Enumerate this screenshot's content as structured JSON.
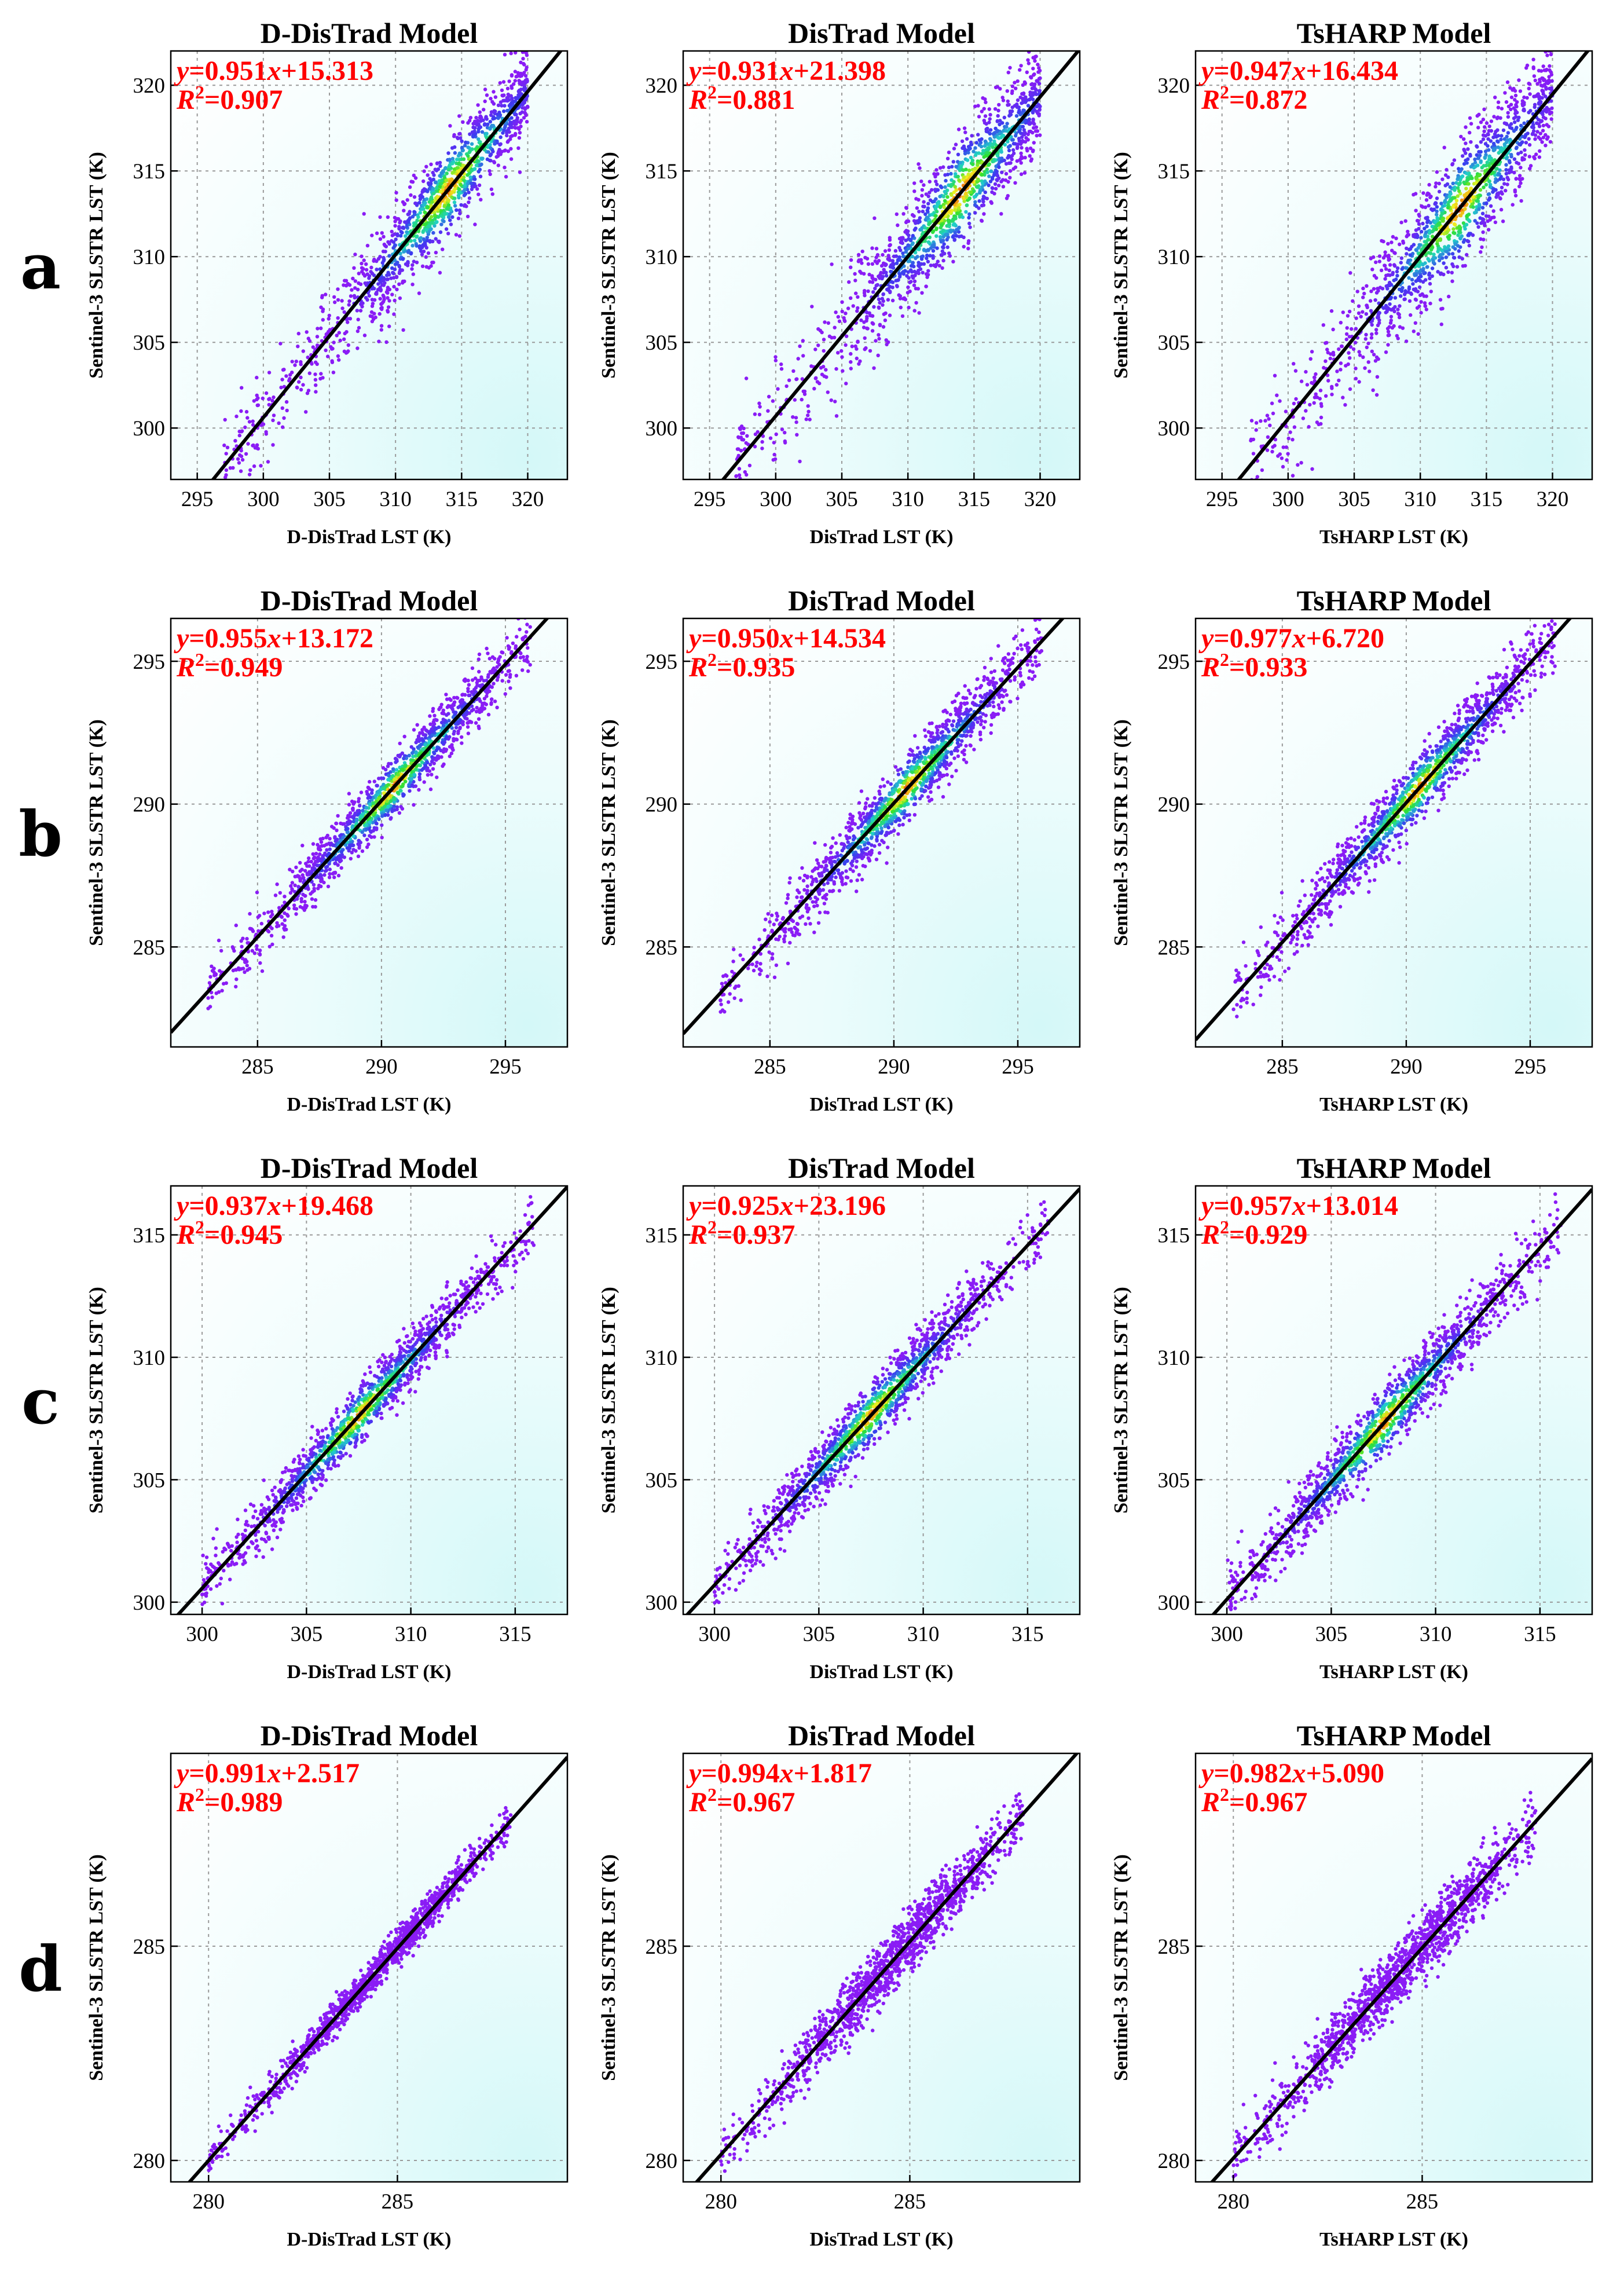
{
  "figure": {
    "row_labels": [
      "a",
      "b",
      "c",
      "d"
    ],
    "x_label_suffix": "LST (K)",
    "y_label": "Sentinel-3 SLSTR LST (K)"
  },
  "colors": {
    "regression_line": "#000000",
    "equation_text": "#ff0000",
    "plot_background_light": "#ffffff",
    "plot_background_tint": "#d4f8f8",
    "grid": "#9a9a9a",
    "density_low": "#8a1cf5",
    "density_mid": "#20d0c8",
    "density_high": "#d81818"
  },
  "chart_data": [
    {
      "row": "a",
      "type": "scatter",
      "title": "D-DisTrad Model",
      "xlabel": "D-DisTrad LST (K)",
      "ylabel": "Sentinel-3 SLSTR LST (K)",
      "xlim": [
        293,
        323
      ],
      "ylim": [
        297,
        322
      ],
      "xticks": [
        295,
        300,
        305,
        310,
        315,
        320
      ],
      "yticks": [
        300,
        305,
        310,
        315,
        320
      ],
      "slope": 0.951,
      "intercept": 15.313,
      "r2": 0.907,
      "eq_slope": "0.951",
      "eq_intercept": "+15.313",
      "eq_r2": "=0.907",
      "density_center": [
        314,
        314
      ],
      "data_range": [
        297,
        320
      ],
      "spread": 2.4,
      "density": "rainbow"
    },
    {
      "row": "a",
      "type": "scatter",
      "title": "DisTrad Model",
      "xlabel": "DisTrad LST (K)",
      "ylabel": "Sentinel-3 SLSTR LST (K)",
      "xlim": [
        293,
        323
      ],
      "ylim": [
        297,
        322
      ],
      "xticks": [
        295,
        300,
        305,
        310,
        315,
        320
      ],
      "yticks": [
        300,
        305,
        310,
        315,
        320
      ],
      "slope": 0.931,
      "intercept": 21.398,
      "r2": 0.881,
      "eq_slope": "0.931",
      "eq_intercept": "+21.398",
      "eq_r2": "=0.881",
      "density_center": [
        314,
        314
      ],
      "data_range": [
        297,
        320
      ],
      "spread": 2.8,
      "density": "rainbow"
    },
    {
      "row": "a",
      "type": "scatter",
      "title": "TsHARP Model",
      "xlabel": "TsHARP LST (K)",
      "ylabel": "Sentinel-3 SLSTR LST (K)",
      "xlim": [
        293,
        323
      ],
      "ylim": [
        297,
        322
      ],
      "xticks": [
        295,
        300,
        305,
        310,
        315,
        320
      ],
      "yticks": [
        300,
        305,
        310,
        315,
        320
      ],
      "slope": 0.947,
      "intercept": 16.434,
      "r2": 0.872,
      "eq_slope": "0.947",
      "eq_intercept": "+16.434",
      "eq_r2": "=0.872",
      "density_center": [
        313,
        313
      ],
      "data_range": [
        297,
        320
      ],
      "spread": 3.0,
      "density": "rainbow"
    },
    {
      "row": "b",
      "type": "scatter",
      "title": "D-DisTrad Model",
      "xlabel": "D-DisTrad LST (K)",
      "ylabel": "Sentinel-3 SLSTR LST (K)",
      "xlim": [
        281.5,
        297.5
      ],
      "ylim": [
        281.5,
        296.5
      ],
      "xticks": [
        285,
        290,
        295
      ],
      "yticks": [
        285,
        290,
        295
      ],
      "slope": 0.955,
      "intercept": 13.172,
      "r2": 0.949,
      "eq_slope": "0.955",
      "eq_intercept": "+13.172",
      "eq_r2": "=0.949",
      "density_center": [
        290.5,
        290.5
      ],
      "data_range": [
        283,
        296
      ],
      "spread": 0.9,
      "density": "rainbow"
    },
    {
      "row": "b",
      "type": "scatter",
      "title": "DisTrad Model",
      "xlabel": "DisTrad LST (K)",
      "ylabel": "Sentinel-3 SLSTR LST (K)",
      "xlim": [
        281.5,
        297.5
      ],
      "ylim": [
        281.5,
        296.5
      ],
      "xticks": [
        285,
        290,
        295
      ],
      "yticks": [
        285,
        290,
        295
      ],
      "slope": 0.95,
      "intercept": 14.534,
      "r2": 0.935,
      "eq_slope": "0.950",
      "eq_intercept": "+14.534",
      "eq_r2": "=0.935",
      "density_center": [
        290.5,
        290.5
      ],
      "data_range": [
        283,
        296
      ],
      "spread": 1.0,
      "density": "rainbow"
    },
    {
      "row": "b",
      "type": "scatter",
      "title": "TsHARP Model",
      "xlabel": "TsHARP LST (K)",
      "ylabel": "Sentinel-3 SLSTR LST (K)",
      "xlim": [
        281.5,
        297.5
      ],
      "ylim": [
        281.5,
        296.5
      ],
      "xticks": [
        285,
        290,
        295
      ],
      "yticks": [
        285,
        290,
        295
      ],
      "slope": 0.977,
      "intercept": 6.72,
      "r2": 0.933,
      "eq_slope": "0.977",
      "eq_intercept": "+6.720",
      "eq_r2": "=0.933",
      "density_center": [
        290.5,
        290.5
      ],
      "data_range": [
        283,
        296
      ],
      "spread": 1.0,
      "density": "rainbow"
    },
    {
      "row": "c",
      "type": "scatter",
      "title": "D-DisTrad Model",
      "xlabel": "D-DisTrad LST (K)",
      "ylabel": "Sentinel-3 SLSTR LST (K)",
      "xlim": [
        298.5,
        317.5
      ],
      "ylim": [
        299.5,
        317
      ],
      "xticks": [
        300,
        305,
        310,
        315
      ],
      "yticks": [
        300,
        305,
        310,
        315
      ],
      "slope": 0.937,
      "intercept": 19.468,
      "r2": 0.945,
      "eq_slope": "0.937",
      "eq_intercept": "+19.468",
      "eq_r2": "=0.945",
      "density_center": [
        307.5,
        307.5
      ],
      "data_range": [
        300,
        316
      ],
      "spread": 1.0,
      "density": "rainbow"
    },
    {
      "row": "c",
      "type": "scatter",
      "title": "DisTrad Model",
      "xlabel": "DisTrad LST (K)",
      "ylabel": "Sentinel-3 SLSTR LST (K)",
      "xlim": [
        298.5,
        317.5
      ],
      "ylim": [
        299.5,
        317
      ],
      "xticks": [
        300,
        305,
        310,
        315
      ],
      "yticks": [
        300,
        305,
        310,
        315
      ],
      "slope": 0.925,
      "intercept": 23.196,
      "r2": 0.937,
      "eq_slope": "0.925",
      "eq_intercept": "+23.196",
      "eq_r2": "=0.937",
      "density_center": [
        307.5,
        307.5
      ],
      "data_range": [
        300,
        316
      ],
      "spread": 1.1,
      "density": "rainbow"
    },
    {
      "row": "c",
      "type": "scatter",
      "title": "TsHARP Model",
      "xlabel": "TsHARP LST (K)",
      "ylabel": "Sentinel-3 SLSTR LST (K)",
      "xlim": [
        298.5,
        317.5
      ],
      "ylim": [
        299.5,
        317
      ],
      "xticks": [
        300,
        305,
        310,
        315
      ],
      "yticks": [
        300,
        305,
        310,
        315
      ],
      "slope": 0.957,
      "intercept": 13.014,
      "r2": 0.929,
      "eq_slope": "0.957",
      "eq_intercept": "+13.014",
      "eq_r2": "=0.929",
      "density_center": [
        307.5,
        307.5
      ],
      "data_range": [
        300,
        316
      ],
      "spread": 1.2,
      "density": "rainbow"
    },
    {
      "row": "d",
      "type": "scatter",
      "title": "D-DisTrad Model",
      "xlabel": "D-DisTrad LST (K)",
      "ylabel": "Sentinel-3 SLSTR LST (K)",
      "xlim": [
        279,
        289.5
      ],
      "ylim": [
        279.5,
        289.5
      ],
      "xticks": [
        280,
        285
      ],
      "yticks": [
        280,
        285
      ],
      "slope": 0.991,
      "intercept": 2.517,
      "r2": 0.989,
      "eq_slope": "0.991",
      "eq_intercept": "+2.517",
      "eq_r2": "=0.989",
      "density_center": [
        284.5,
        284.5
      ],
      "data_range": [
        280,
        288
      ],
      "spread": 0.35,
      "density": "uniform"
    },
    {
      "row": "d",
      "type": "scatter",
      "title": "DisTrad Model",
      "xlabel": "DisTrad LST (K)",
      "ylabel": "Sentinel-3 SLSTR LST (K)",
      "xlim": [
        279,
        289.5
      ],
      "ylim": [
        279.5,
        289.5
      ],
      "xticks": [
        280,
        285
      ],
      "yticks": [
        280,
        285
      ],
      "slope": 0.994,
      "intercept": 1.817,
      "r2": 0.967,
      "eq_slope": "0.994",
      "eq_intercept": "+1.817",
      "eq_r2": "=0.967",
      "density_center": [
        284.5,
        284.5
      ],
      "data_range": [
        280,
        288
      ],
      "spread": 0.6,
      "density": "uniform"
    },
    {
      "row": "d",
      "type": "scatter",
      "title": "TsHARP Model",
      "xlabel": "TsHARP LST (K)",
      "ylabel": "Sentinel-3 SLSTR LST (K)",
      "xlim": [
        279,
        289.5
      ],
      "ylim": [
        279.5,
        289.5
      ],
      "xticks": [
        280,
        285
      ],
      "yticks": [
        280,
        285
      ],
      "slope": 0.982,
      "intercept": 5.09,
      "r2": 0.967,
      "eq_slope": "0.982",
      "eq_intercept": "+5.090",
      "eq_r2": "=0.967",
      "density_center": [
        284.5,
        284.5
      ],
      "data_range": [
        280,
        288
      ],
      "spread": 0.65,
      "density": "uniform"
    }
  ]
}
